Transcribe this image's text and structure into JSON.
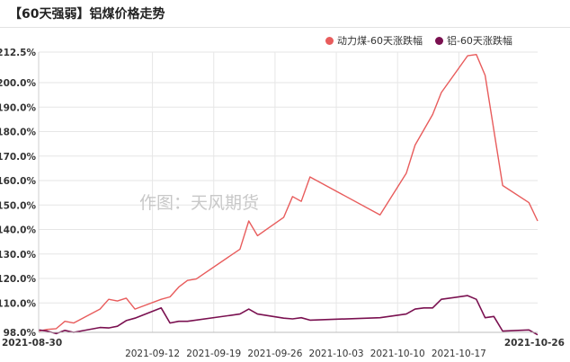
{
  "title": "【60天强弱】铝煤价格走势",
  "watermark": "作图：天风期货",
  "chart_data": {
    "type": "line",
    "title": "【60天强弱】铝煤价格走势",
    "x_labels": [
      "2021-08-30",
      "2021-09-12",
      "2021-09-19",
      "2021-09-26",
      "2021-10-03",
      "2021-10-10",
      "2021-10-17",
      "2021-10-26"
    ],
    "y_ticks": [
      "98.0%",
      "110.0%",
      "120.0%",
      "130.0%",
      "140.0%",
      "150.0%",
      "160.0%",
      "170.0%",
      "180.0%",
      "190.0%",
      "200.0%",
      "212.5%"
    ],
    "ylim": [
      98,
      212.5
    ],
    "grid": true,
    "legend_position": "top-right",
    "series": [
      {
        "name": "动力煤-60天涨跌幅",
        "color": "#e85c5c",
        "points": [
          [
            "2021-08-30",
            98.5
          ],
          [
            "2021-08-31",
            99.2
          ],
          [
            "2021-09-01",
            99.5
          ],
          [
            "2021-09-02",
            102.5
          ],
          [
            "2021-09-03",
            101.8
          ],
          [
            "2021-09-06",
            107.5
          ],
          [
            "2021-09-07",
            111.5
          ],
          [
            "2021-09-08",
            110.8
          ],
          [
            "2021-09-09",
            112.0
          ],
          [
            "2021-09-10",
            107.5
          ],
          [
            "2021-09-13",
            111.5
          ],
          [
            "2021-09-14",
            112.5
          ],
          [
            "2021-09-15",
            116.5
          ],
          [
            "2021-09-16",
            119.2
          ],
          [
            "2021-09-17",
            119.8
          ],
          [
            "2021-09-22",
            132.0
          ],
          [
            "2021-09-23",
            143.5
          ],
          [
            "2021-09-24",
            137.5
          ],
          [
            "2021-09-27",
            145.0
          ],
          [
            "2021-09-28",
            153.5
          ],
          [
            "2021-09-29",
            151.5
          ],
          [
            "2021-09-30",
            161.5
          ],
          [
            "2021-10-08",
            146.0
          ],
          [
            "2021-10-11",
            163.0
          ],
          [
            "2021-10-12",
            174.5
          ],
          [
            "2021-10-14",
            187.0
          ],
          [
            "2021-10-15",
            196.0
          ],
          [
            "2021-10-18",
            211.0
          ],
          [
            "2021-10-19",
            211.5
          ],
          [
            "2021-10-20",
            203.0
          ],
          [
            "2021-10-22",
            158.0
          ],
          [
            "2021-10-25",
            151.0
          ],
          [
            "2021-10-26",
            143.5
          ]
        ]
      },
      {
        "name": "铝-60天涨跌幅",
        "color": "#7a1050",
        "points": [
          [
            "2021-08-30",
            99.0
          ],
          [
            "2021-08-31",
            98.5
          ],
          [
            "2021-09-01",
            97.5
          ],
          [
            "2021-09-02",
            98.8
          ],
          [
            "2021-09-03",
            98.0
          ],
          [
            "2021-09-06",
            100.0
          ],
          [
            "2021-09-07",
            99.8
          ],
          [
            "2021-09-08",
            100.5
          ],
          [
            "2021-09-09",
            102.8
          ],
          [
            "2021-09-10",
            103.8
          ],
          [
            "2021-09-13",
            108.0
          ],
          [
            "2021-09-14",
            101.8
          ],
          [
            "2021-09-15",
            102.5
          ],
          [
            "2021-09-16",
            102.5
          ],
          [
            "2021-09-22",
            105.5
          ],
          [
            "2021-09-23",
            107.5
          ],
          [
            "2021-09-24",
            105.5
          ],
          [
            "2021-09-27",
            103.8
          ],
          [
            "2021-09-28",
            103.5
          ],
          [
            "2021-09-29",
            104.0
          ],
          [
            "2021-09-30",
            103.0
          ],
          [
            "2021-10-08",
            104.0
          ],
          [
            "2021-10-11",
            105.5
          ],
          [
            "2021-10-12",
            107.5
          ],
          [
            "2021-10-13",
            108.0
          ],
          [
            "2021-10-14",
            108.0
          ],
          [
            "2021-10-15",
            111.5
          ],
          [
            "2021-10-18",
            113.0
          ],
          [
            "2021-10-19",
            111.5
          ],
          [
            "2021-10-20",
            104.0
          ],
          [
            "2021-10-21",
            104.5
          ],
          [
            "2021-10-22",
            98.5
          ],
          [
            "2021-10-25",
            99.0
          ],
          [
            "2021-10-26",
            97.0
          ]
        ]
      }
    ]
  }
}
